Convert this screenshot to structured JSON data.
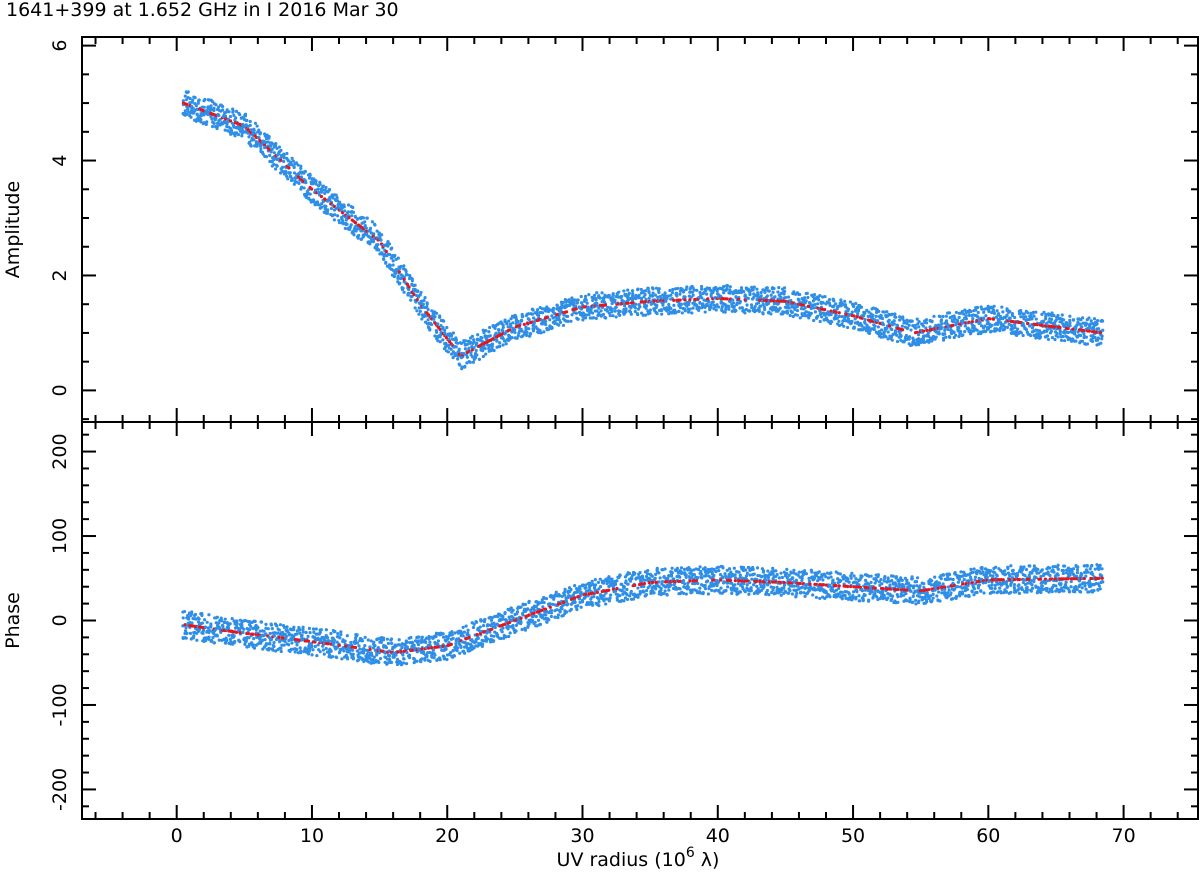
{
  "title": "1641+399 at 1.652 GHz in I  2016 Mar 30",
  "chart_data": {
    "type": "scatter",
    "x_axis": {
      "label_prefix": "UV radius  (10",
      "label_exp": "6",
      "label_suffix": " λ)",
      "range": [
        -7,
        75.5
      ],
      "major_ticks": [
        0,
        10,
        20,
        30,
        40,
        50,
        60,
        70
      ],
      "minor_step": 2
    },
    "panels": [
      {
        "name": "amplitude",
        "ylabel": "Amplitude",
        "ylim": [
          -0.55,
          6.15
        ],
        "major_ticks": [
          0,
          2,
          4,
          6
        ],
        "minor_step": 0.5,
        "series": [
          {
            "name": "observed",
            "color": "#2f8ee6",
            "note": "dense band of visibility tracks"
          },
          {
            "name": "model",
            "color": "#e8141b"
          }
        ],
        "track_envelope": [
          {
            "x": 0.5,
            "y": 5.0
          },
          {
            "x": 5,
            "y": 4.6
          },
          {
            "x": 10,
            "y": 3.5
          },
          {
            "x": 15,
            "y": 2.6
          },
          {
            "x": 18,
            "y": 1.5
          },
          {
            "x": 21,
            "y": 0.6
          },
          {
            "x": 25,
            "y": 1.1
          },
          {
            "x": 30,
            "y": 1.45
          },
          {
            "x": 35,
            "y": 1.55
          },
          {
            "x": 40,
            "y": 1.6
          },
          {
            "x": 45,
            "y": 1.55
          },
          {
            "x": 50,
            "y": 1.3
          },
          {
            "x": 54.5,
            "y": 1.0
          },
          {
            "x": 60,
            "y": 1.25
          },
          {
            "x": 68.5,
            "y": 1.0
          }
        ]
      },
      {
        "name": "phase",
        "ylabel": "Phase",
        "ylim": [
          -235,
          235
        ],
        "major_ticks": [
          -200,
          -100,
          0,
          100,
          200
        ],
        "minor_step": 20,
        "series": [
          {
            "name": "observed",
            "color": "#2f8ee6"
          },
          {
            "name": "model",
            "color": "#e8141b"
          }
        ],
        "track_envelope": [
          {
            "x": 0.5,
            "y": -5
          },
          {
            "x": 5,
            "y": -15
          },
          {
            "x": 10,
            "y": -25
          },
          {
            "x": 16,
            "y": -38
          },
          {
            "x": 20,
            "y": -30
          },
          {
            "x": 25,
            "y": 0
          },
          {
            "x": 30,
            "y": 30
          },
          {
            "x": 35,
            "y": 45
          },
          {
            "x": 40,
            "y": 48
          },
          {
            "x": 45,
            "y": 45
          },
          {
            "x": 50,
            "y": 40
          },
          {
            "x": 55,
            "y": 35
          },
          {
            "x": 60,
            "y": 48
          },
          {
            "x": 68.5,
            "y": 50
          }
        ]
      }
    ]
  }
}
